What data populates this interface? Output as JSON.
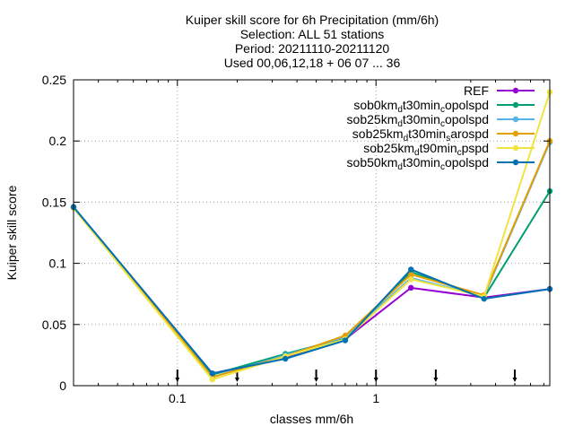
{
  "chart_data": {
    "type": "line",
    "title_lines": [
      "Kuiper skill score  for 6h Precipitation (mm/6h)",
      "Selection: ALL      51 stations",
      "Period: 20211110-20211120",
      "Used 00,06,12,18 + 06 07 ... 36"
    ],
    "xlabel": "classes mm/6h",
    "ylabel": "Kuiper skill score",
    "x_scale": "log",
    "xlim": [
      0.03,
      7.5
    ],
    "ylim": [
      0,
      0.25
    ],
    "x_ticks": [
      {
        "value": 0.1,
        "label": "0.1"
      },
      {
        "value": 1,
        "label": "1"
      }
    ],
    "y_ticks": [
      {
        "value": 0,
        "label": "0"
      },
      {
        "value": 0.05,
        "label": "0.05"
      },
      {
        "value": 0.1,
        "label": "0.1"
      },
      {
        "value": 0.15,
        "label": "0.15"
      },
      {
        "value": 0.2,
        "label": "0.2"
      },
      {
        "value": 0.25,
        "label": "0.25"
      }
    ],
    "grid": true,
    "legend_position": "top-right",
    "x": [
      0.03,
      0.15,
      0.35,
      0.7,
      1.5,
      3.5,
      7.5
    ],
    "class_markers": [
      0.1,
      0.2,
      0.5,
      1,
      2,
      5
    ],
    "series": [
      {
        "name": "REF",
        "label_parts": [
          {
            "t": "REF"
          }
        ],
        "color": "#9400d3",
        "values": [
          0.146,
          0.01,
          0.023,
          0.038,
          0.08,
          0.072,
          0.079
        ]
      },
      {
        "name": "sob0km_dt30min_copolspd",
        "label_parts": [
          {
            "t": "sob0km"
          },
          {
            "t": "d",
            "sub": true
          },
          {
            "t": "t30min"
          },
          {
            "t": "c",
            "sub": true
          },
          {
            "t": "opolspd"
          }
        ],
        "color": "#009e73",
        "values": [
          0.146,
          0.009,
          0.026,
          0.039,
          0.093,
          0.072,
          0.159
        ]
      },
      {
        "name": "sob25km_dt30min_copolspd",
        "label_parts": [
          {
            "t": "sob25km"
          },
          {
            "t": "d",
            "sub": true
          },
          {
            "t": "t30min"
          },
          {
            "t": "c",
            "sub": true
          },
          {
            "t": "opolspd"
          }
        ],
        "color": "#56b4e9",
        "values": [
          0.146,
          0.007,
          0.025,
          0.04,
          0.088,
          0.073,
          0.199
        ]
      },
      {
        "name": "sob25km_dt30min_sarospd",
        "label_parts": [
          {
            "t": "sob25km"
          },
          {
            "t": "d",
            "sub": true
          },
          {
            "t": "t30min"
          },
          {
            "t": "s",
            "sub": true
          },
          {
            "t": "arospd"
          }
        ],
        "color": "#e69f00",
        "values": [
          0.146,
          0.007,
          0.024,
          0.041,
          0.091,
          0.074,
          0.2
        ]
      },
      {
        "name": "sob25km_dt90min_cpspd",
        "label_parts": [
          {
            "t": "sob25km"
          },
          {
            "t": "d",
            "sub": true
          },
          {
            "t": "t90min"
          },
          {
            "t": "c",
            "sub": true
          },
          {
            "t": "pspd"
          }
        ],
        "color": "#f0e442",
        "values": [
          0.145,
          0.005,
          0.024,
          0.038,
          0.087,
          0.073,
          0.24
        ]
      },
      {
        "name": "sob50km_dt30min_copolspd",
        "label_parts": [
          {
            "t": "sob50km"
          },
          {
            "t": "d",
            "sub": true
          },
          {
            "t": "t30min"
          },
          {
            "t": "c",
            "sub": true
          },
          {
            "t": "opolspd"
          }
        ],
        "color": "#0072b2",
        "values": [
          0.146,
          0.01,
          0.022,
          0.037,
          0.095,
          0.071,
          0.079
        ]
      }
    ]
  }
}
